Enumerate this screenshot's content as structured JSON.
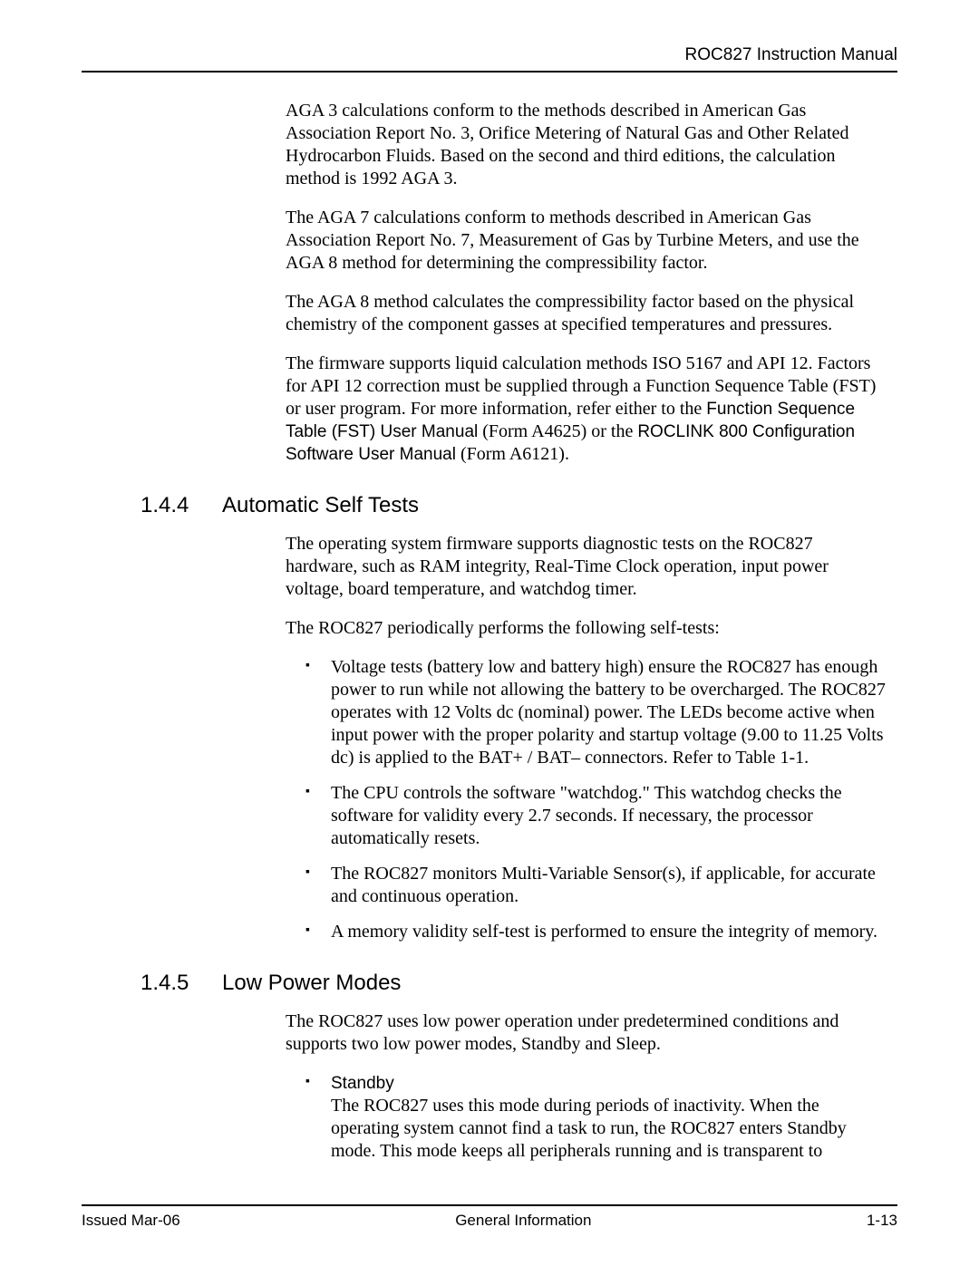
{
  "header": {
    "doc_title": "ROC827 Instruction Manual"
  },
  "intro": {
    "p1": "AGA 3 calculations conform to the methods described in American Gas Association Report No. 3, Orifice Metering of Natural Gas and Other Related Hydrocarbon Fluids. Based on the second and third editions, the calculation method is 1992 AGA 3.",
    "p2": "The AGA 7 calculations conform to methods described in American Gas Association Report No. 7, Measurement of Gas by Turbine Meters, and use the AGA 8 method for determining the compressibility factor.",
    "p3": "The AGA 8 method calculates the compressibility factor based on the physical chemistry of the component gasses at specified temperatures and pressures.",
    "p4a": "The firmware supports liquid calculation methods ISO 5167 and API 12. Factors for API 12 correction must be supplied through a Function Sequence Table (FST) or user program. For more information, refer either to the ",
    "p4_ref1": "Function Sequence Table (FST) User Manual",
    "p4_mid1": " (Form A4625) or the ",
    "p4_ref2": "ROCLINK 800 Configuration Software User Manual",
    "p4_end": " (Form A6121)."
  },
  "s144": {
    "num": "1.4.4",
    "title": "Automatic Self Tests",
    "p1": "The operating system firmware supports diagnostic tests on the ROC827 hardware, such as RAM integrity, Real-Time Clock operation, input power voltage, board temperature, and watchdog timer.",
    "p2": "The ROC827 periodically performs the following self-tests:",
    "b1": "Voltage tests (battery low and battery high) ensure the ROC827 has enough power to run while not allowing the battery to be overcharged. The ROC827 operates with 12 Volts dc (nominal) power. The LEDs become active when input power with the proper polarity and startup voltage (9.00 to 11.25 Volts dc) is applied to the BAT+ / BAT– connectors. Refer to Table 1-1.",
    "b2": "The CPU controls the software \"watchdog.\" This watchdog checks the software for validity every 2.7 seconds. If necessary, the processor automatically resets.",
    "b3": "The ROC827 monitors Multi-Variable Sensor(s), if applicable, for accurate and continuous operation.",
    "b4": "A memory validity self-test is performed to ensure the integrity of memory."
  },
  "s145": {
    "num": "1.4.5",
    "title": "Low Power Modes",
    "p1": "The ROC827 uses low power operation under predetermined conditions and supports two low power modes, Standby and Sleep.",
    "b1_label": "Standby",
    "b1_body": "The ROC827 uses this mode during periods of inactivity. When the operating system cannot find a task to run, the ROC827 enters Standby mode. This mode keeps all peripherals running and is transparent to"
  },
  "footer": {
    "left": "Issued Mar-06",
    "center": "General Information",
    "right": "1-13"
  }
}
